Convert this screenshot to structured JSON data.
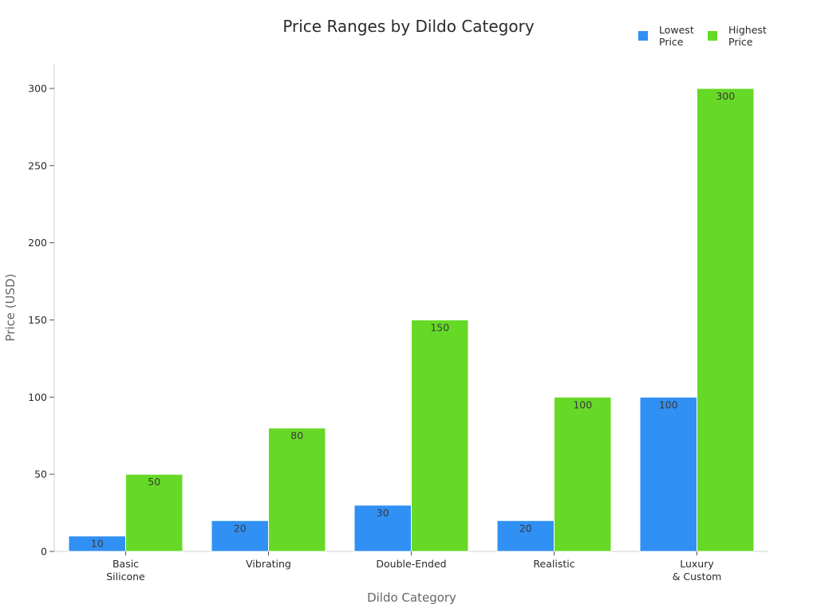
{
  "chart_data": {
    "type": "bar",
    "title": "Price Ranges by Dildo Category",
    "xlabel": "Dildo Category",
    "ylabel": "Price (USD)",
    "categories": [
      [
        "Basic",
        "Silicone"
      ],
      [
        "Vibrating"
      ],
      [
        "Double-Ended"
      ],
      [
        "Realistic"
      ],
      [
        "Luxury",
        "& Custom"
      ]
    ],
    "series": [
      {
        "name": [
          "Lowest",
          "Price"
        ],
        "color": "#3090f3",
        "values": [
          10,
          20,
          30,
          20,
          100
        ]
      },
      {
        "name": [
          "Highest",
          "Price"
        ],
        "color": "#66d927",
        "values": [
          50,
          80,
          150,
          100,
          300
        ]
      }
    ],
    "ylim": [
      0,
      316
    ],
    "yticks": [
      "0",
      "50",
      "100",
      "150",
      "200",
      "250",
      "300"
    ],
    "grid": false,
    "legend_position": "top-right",
    "data_labels": true
  }
}
